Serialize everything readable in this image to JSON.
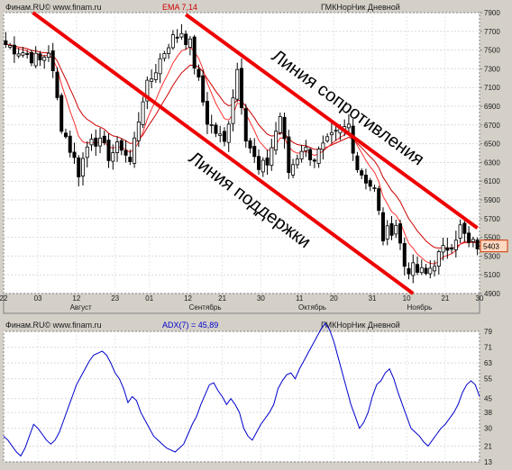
{
  "chart_data": [
    {
      "type": "candlestick",
      "panel": "price",
      "header": {
        "source": "Финам.RU© www.finam.ru",
        "indicator": "EMA 7,14",
        "instrument": "ГМКНорНик Дневной"
      },
      "y_ticks": [
        4900,
        5100,
        5300,
        5500,
        5700,
        5900,
        6100,
        6300,
        6500,
        6700,
        6900,
        7100,
        7300,
        7500,
        7700,
        7900
      ],
      "ylim": [
        4900,
        7900
      ],
      "x_day_ticks": [
        "22",
        "03",
        "12",
        "23",
        "01",
        "12",
        "21",
        "30",
        "11",
        "20",
        "31",
        "10",
        "21",
        "30"
      ],
      "x_month_labels": [
        "Август",
        "Сентябрь",
        "Октябрь",
        "Ноябрь"
      ],
      "last_price_label": "5403",
      "annotations": {
        "resistance": "Линия сопротивления",
        "support": "Линия поддержки"
      },
      "close_path": [
        [
          0,
          7560
        ],
        [
          4,
          7480
        ],
        [
          8,
          7380
        ],
        [
          10,
          7500
        ],
        [
          13,
          6700
        ],
        [
          17,
          6200
        ],
        [
          20,
          6600
        ],
        [
          24,
          6380
        ],
        [
          27,
          6480
        ],
        [
          29,
          6300
        ],
        [
          32,
          7000
        ],
        [
          36,
          7400
        ],
        [
          38,
          7580
        ],
        [
          41,
          7700
        ],
        [
          43,
          7550
        ],
        [
          47,
          6750
        ],
        [
          51,
          6500
        ],
        [
          54,
          7300
        ],
        [
          56,
          6600
        ],
        [
          59,
          6200
        ],
        [
          61,
          6300
        ],
        [
          64,
          6800
        ],
        [
          66,
          6200
        ],
        [
          69,
          6460
        ],
        [
          72,
          6350
        ],
        [
          76,
          6550
        ],
        [
          78,
          6620
        ],
        [
          80,
          6700
        ],
        [
          82,
          6250
        ],
        [
          86,
          6000
        ],
        [
          88,
          5500
        ],
        [
          91,
          5650
        ],
        [
          93,
          5200
        ],
        [
          95,
          5150
        ],
        [
          98,
          5100
        ],
        [
          100,
          5250
        ],
        [
          104,
          5450
        ],
        [
          106,
          5600
        ],
        [
          108,
          5420
        ]
      ],
      "resistance_line": {
        "from": [
          42,
          7880
        ],
        "to": [
          110,
          5600
        ]
      },
      "support_line": {
        "from": [
          0,
          7900
        ],
        "to": [
          95,
          4900
        ]
      }
    },
    {
      "type": "line",
      "panel": "indicator",
      "header": {
        "source": "Финам.RU© www.finam.ru",
        "indicator": "ADX(7) = 45,89",
        "instrument": "ГМКНорНик Дневной"
      },
      "y_ticks": [
        13,
        21,
        30,
        38,
        45,
        55,
        63,
        71,
        79
      ],
      "ylim": [
        13,
        79
      ],
      "series": [
        {
          "name": "ADX(7)",
          "values": [
            26,
            24,
            21,
            18,
            16,
            20,
            26,
            32,
            30,
            27,
            24,
            22,
            24,
            28,
            34,
            40,
            46,
            52,
            56,
            60,
            64,
            67,
            68,
            69,
            67,
            63,
            58,
            55,
            50,
            43,
            46,
            44,
            38,
            34,
            30,
            26,
            24,
            22,
            20,
            19,
            18,
            20,
            22,
            27,
            32,
            36,
            42,
            47,
            52,
            53,
            49,
            46,
            42,
            45,
            42,
            38,
            30,
            26,
            24,
            28,
            32,
            35,
            38,
            42,
            50,
            54,
            57,
            58,
            55,
            60,
            64,
            68,
            72,
            76,
            80,
            83,
            80,
            74,
            66,
            58,
            50,
            42,
            36,
            30,
            33,
            38,
            46,
            52,
            54,
            58,
            60,
            55,
            48,
            42,
            36,
            30,
            28,
            26,
            23,
            21,
            24,
            27,
            30,
            32,
            35,
            38,
            42,
            48,
            52,
            54,
            52,
            46
          ]
        }
      ]
    }
  ]
}
